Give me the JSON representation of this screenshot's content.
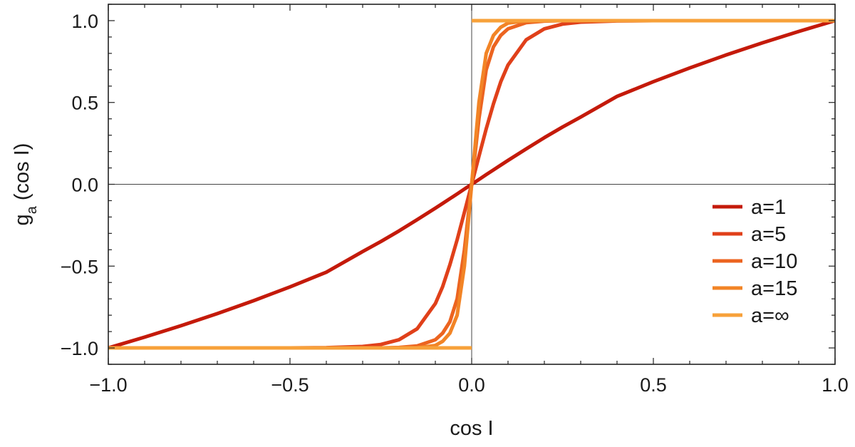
{
  "chart_data": {
    "type": "line",
    "xlabel": "cos I",
    "ylabel_main": "g",
    "ylabel_sub": "a",
    "ylabel_rest": " (cos I)",
    "xlim": [
      -1.0,
      1.0
    ],
    "ylim": [
      -1.1,
      1.1
    ],
    "x_ticks": [
      -1.0,
      -0.5,
      0.0,
      0.5,
      1.0
    ],
    "x_tick_labels": [
      "−1.0",
      "−0.5",
      "0.0",
      "0.5",
      "1.0"
    ],
    "y_ticks": [
      -1.0,
      -0.5,
      0.0,
      0.5,
      1.0
    ],
    "y_tick_labels": [
      "−1.0",
      "−0.5",
      "0.0",
      "0.5",
      "1.0"
    ],
    "grid": false,
    "zero_lines": true,
    "legend_position": "lower-right",
    "x": [
      -1.0,
      -0.9,
      -0.8,
      -0.7,
      -0.6,
      -0.5,
      -0.4,
      -0.3,
      -0.25,
      -0.2,
      -0.15,
      -0.1,
      -0.08,
      -0.06,
      -0.04,
      -0.02,
      0.0,
      0.02,
      0.04,
      0.06,
      0.08,
      0.1,
      0.15,
      0.2,
      0.25,
      0.3,
      0.4,
      0.5,
      0.6,
      0.7,
      0.8,
      0.9,
      1.0
    ],
    "series": [
      {
        "name": "a=1",
        "color": "#c41a0a",
        "values": [
          -1.0,
          -0.934,
          -0.864,
          -0.79,
          -0.711,
          -0.627,
          -0.537,
          -0.411,
          -0.35,
          -0.285,
          -0.216,
          -0.146,
          -0.117,
          -0.088,
          -0.059,
          -0.029,
          0.0,
          0.029,
          0.059,
          0.088,
          0.117,
          0.146,
          0.216,
          0.285,
          0.35,
          0.411,
          0.537,
          0.627,
          0.711,
          0.79,
          0.864,
          0.934,
          1.0
        ]
      },
      {
        "name": "a=5",
        "color": "#e0401a",
        "values": [
          -1.0,
          -1.0,
          -1.0,
          -1.0,
          -1.0,
          -1.0,
          -0.998,
          -0.991,
          -0.979,
          -0.95,
          -0.883,
          -0.729,
          -0.626,
          -0.492,
          -0.339,
          -0.171,
          0.0,
          0.171,
          0.339,
          0.492,
          0.626,
          0.729,
          0.883,
          0.95,
          0.979,
          0.991,
          0.998,
          1.0,
          1.0,
          1.0,
          1.0,
          1.0,
          1.0
        ]
      },
      {
        "name": "a=10",
        "color": "#ec6420",
        "values": [
          -1.0,
          -1.0,
          -1.0,
          -1.0,
          -1.0,
          -1.0,
          -1.0,
          -1.0,
          -1.0,
          -0.997,
          -0.988,
          -0.95,
          -0.91,
          -0.84,
          -0.7,
          -0.4,
          0.0,
          0.4,
          0.7,
          0.84,
          0.91,
          0.95,
          0.988,
          0.997,
          1.0,
          1.0,
          1.0,
          1.0,
          1.0,
          1.0,
          1.0,
          1.0,
          1.0
        ]
      },
      {
        "name": "a=15",
        "color": "#f28426",
        "values": [
          -1.0,
          -1.0,
          -1.0,
          -1.0,
          -1.0,
          -1.0,
          -1.0,
          -1.0,
          -1.0,
          -1.0,
          -0.999,
          -0.985,
          -0.96,
          -0.91,
          -0.8,
          -0.5,
          0.0,
          0.5,
          0.8,
          0.91,
          0.96,
          0.985,
          0.999,
          1.0,
          1.0,
          1.0,
          1.0,
          1.0,
          1.0,
          1.0,
          1.0,
          1.0,
          1.0
        ]
      },
      {
        "name": "a=∞",
        "color": "#f7a13a",
        "step": true,
        "values": [
          -1.0,
          -1.0,
          -1.0,
          -1.0,
          -1.0,
          -1.0,
          -1.0,
          -1.0,
          -1.0,
          -1.0,
          -1.0,
          -1.0,
          -1.0,
          -1.0,
          -1.0,
          -1.0,
          0.0,
          1.0,
          1.0,
          1.0,
          1.0,
          1.0,
          1.0,
          1.0,
          1.0,
          1.0,
          1.0,
          1.0,
          1.0,
          1.0,
          1.0,
          1.0,
          1.0
        ]
      }
    ]
  }
}
